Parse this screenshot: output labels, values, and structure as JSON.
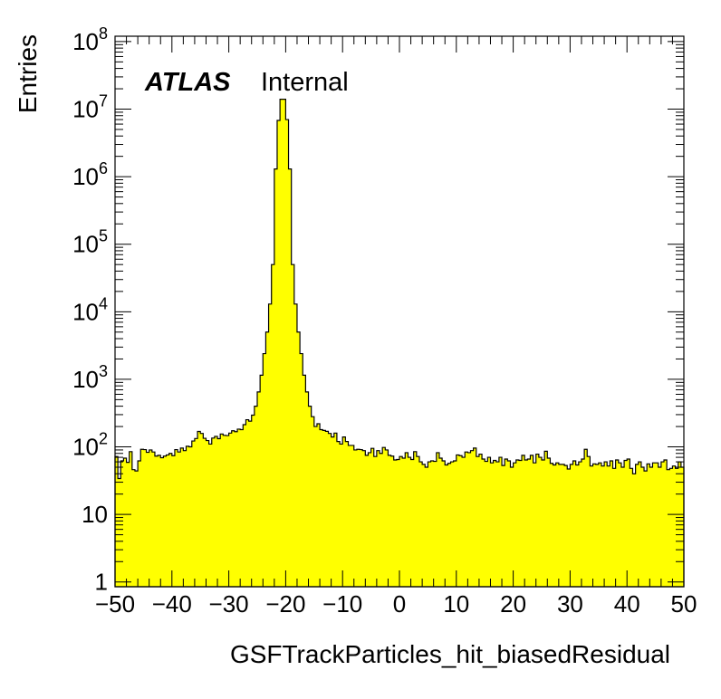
{
  "chart_data": {
    "type": "histogram",
    "xlabel": "GSFTrackParticles_hit_biasedResidual",
    "ylabel": "Entries",
    "xlim": [
      -50,
      50
    ],
    "ylim": [
      0.85,
      120000000
    ],
    "y_scale": "log",
    "label_main": "ATLAS",
    "label_sub": "Internal",
    "fill_color": "#ffff00",
    "line_color": "#000000",
    "x_tick_labels": [
      "−50",
      "−40",
      "−30",
      "−20",
      "−10",
      "0",
      "10",
      "20",
      "30",
      "40",
      "50"
    ],
    "y_tick_labels": [
      {
        "value": 1,
        "base": "1",
        "exp": ""
      },
      {
        "value": 10,
        "base": "10",
        "exp": ""
      },
      {
        "value": 100,
        "base": "10",
        "exp": "2"
      },
      {
        "value": 1000,
        "base": "10",
        "exp": "3"
      },
      {
        "value": 10000,
        "base": "10",
        "exp": "4"
      },
      {
        "value": 100000,
        "base": "10",
        "exp": "5"
      },
      {
        "value": 1000000,
        "base": "10",
        "exp": "6"
      },
      {
        "value": 10000000,
        "base": "10",
        "exp": "7"
      },
      {
        "value": 100000000,
        "base": "10",
        "exp": "8"
      }
    ],
    "bins": {
      "start": -50,
      "width": 1,
      "values": [
        72,
        34,
        62,
        68,
        59,
        85,
        46,
        44,
        62,
        92,
        91,
        83,
        90,
        84,
        73,
        75,
        69,
        73,
        76,
        80,
        74,
        91,
        84,
        96,
        88,
        102,
        100,
        122,
        133,
        169,
        158,
        134,
        124,
        110,
        135,
        143,
        132,
        155,
        148,
        147,
        160,
        173,
        168,
        183,
        180,
        213,
        252,
        240,
        295,
        400,
        650,
        1150,
        2400,
        5000,
        13000,
        50000,
        1300000,
        6800000,
        14000000,
        14000000,
        7000000,
        1300000,
        50000,
        13000,
        5000,
        2400,
        1150,
        650,
        400,
        280,
        200,
        220,
        180,
        175,
        170,
        158,
        140,
        160,
        120,
        110,
        140,
        120,
        105,
        105,
        90,
        92,
        91,
        88,
        75,
        82,
        95,
        72,
        88,
        80,
        98,
        90,
        75,
        73,
        64,
        65,
        72,
        68,
        82,
        70,
        65,
        85,
        72,
        60,
        55,
        50,
        60,
        62,
        61,
        82,
        68,
        62,
        54,
        57,
        60,
        62,
        76,
        74,
        70,
        84,
        82,
        88,
        96,
        72,
        78,
        66,
        61,
        70,
        58,
        63,
        60,
        70,
        53,
        66,
        62,
        50,
        58,
        64,
        63,
        75,
        64,
        66,
        75,
        58,
        78,
        70,
        64,
        86,
        68,
        57,
        54,
        58,
        55,
        55,
        53,
        47,
        55,
        62,
        54,
        60,
        66,
        92,
        72,
        52,
        56,
        55,
        58,
        52,
        60,
        52,
        62,
        48,
        64,
        58,
        50,
        63,
        66,
        48,
        40,
        55,
        60,
        50,
        44,
        56,
        50,
        58,
        58,
        50,
        60,
        64,
        46,
        48,
        52,
        48,
        60,
        50
      ]
    }
  }
}
